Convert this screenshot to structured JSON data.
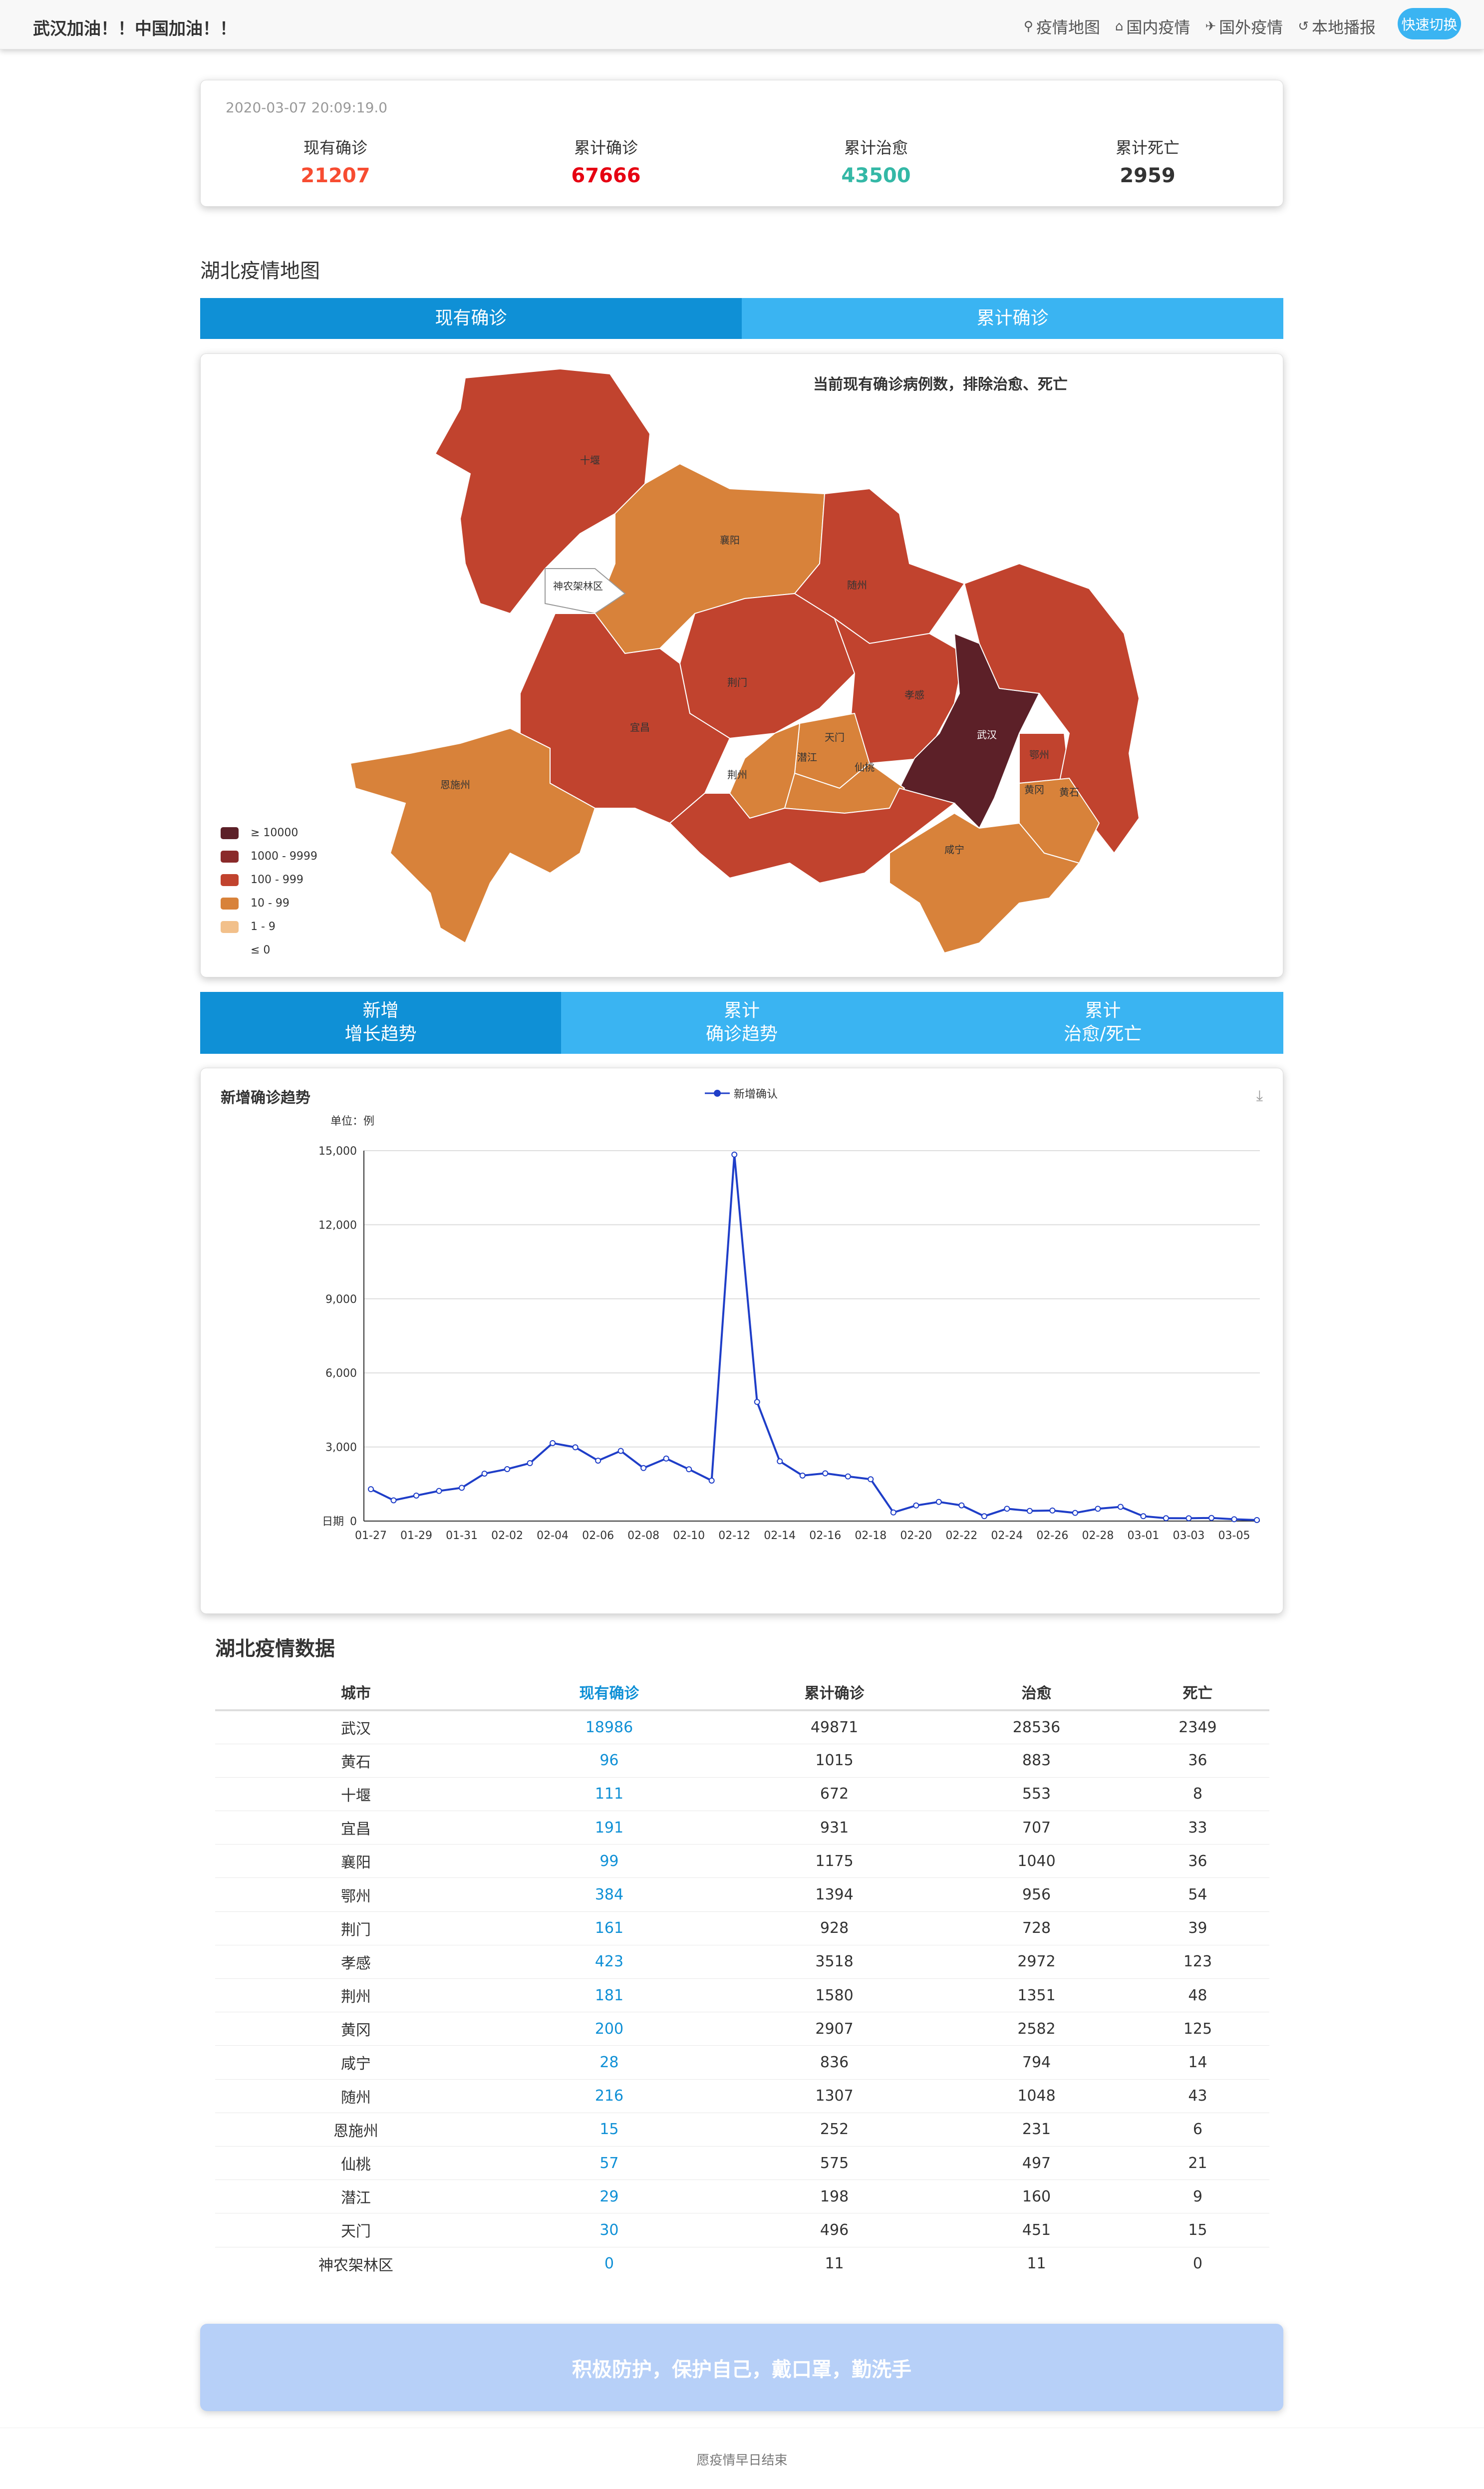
{
  "nav": {
    "brand": "武汉加油！！中国加油！！",
    "links": [
      {
        "icon": "map-marker-icon",
        "glyph": "⚲",
        "label": "疫情地图"
      },
      {
        "icon": "home-icon",
        "glyph": "⌂",
        "label": "国内疫情"
      },
      {
        "icon": "plane-icon",
        "glyph": "✈",
        "label": "国外疫情"
      },
      {
        "icon": "history-icon",
        "glyph": "↺",
        "label": "本地播报"
      }
    ],
    "quick": "快速切换"
  },
  "stats": {
    "time": "2020-03-07 20:09:19.0",
    "items": [
      {
        "label": "现有确诊",
        "value": "21207",
        "color": "#f74c31"
      },
      {
        "label": "累计确诊",
        "value": "67666",
        "color": "#e60012"
      },
      {
        "label": "累计治愈",
        "value": "43500",
        "color": "#34b8a6"
      },
      {
        "label": "累计死亡",
        "value": "2959",
        "color": "#333333"
      }
    ]
  },
  "mapSection": {
    "title": "湖北疫情地图",
    "tabs": [
      "现有确诊",
      "累计确诊"
    ],
    "mapTitle": "当前现有确诊病例数，排除治愈、死亡",
    "legend": [
      {
        "label": "≥ 10000",
        "color": "#5c2028"
      },
      {
        "label": "1000 - 9999",
        "color": "#8a2a2a"
      },
      {
        "label": "100 - 999",
        "color": "#c1432e"
      },
      {
        "label": "10 - 99",
        "color": "#d8823a"
      },
      {
        "label": "1 - 9",
        "color": "#f2c08a"
      },
      {
        "label": "≤ 0",
        "color": "#ffffff"
      }
    ],
    "regions": [
      {
        "name": "十堰",
        "color": "#c1432e"
      },
      {
        "name": "襄阳",
        "color": "#d8823a"
      },
      {
        "name": "随州",
        "color": "#c1432e"
      },
      {
        "name": "神农架林区",
        "color": "#ffffff"
      },
      {
        "name": "荆门",
        "color": "#c1432e"
      },
      {
        "name": "孝感",
        "color": "#c1432e"
      },
      {
        "name": "武汉",
        "color": "#5c2028"
      },
      {
        "name": "宜昌",
        "color": "#c1432e"
      },
      {
        "name": "天门",
        "color": "#d8823a"
      },
      {
        "name": "潜江",
        "color": "#d8823a"
      },
      {
        "name": "仙桃",
        "color": "#d8823a"
      },
      {
        "name": "荆州",
        "color": "#c1432e"
      },
      {
        "name": "恩施州",
        "color": "#d8823a"
      },
      {
        "name": "鄂州",
        "color": "#c1432e"
      },
      {
        "name": "黄冈",
        "color": "#c1432e"
      },
      {
        "name": "黄石",
        "color": "#d8823a"
      },
      {
        "name": "咸宁",
        "color": "#d8823a"
      }
    ]
  },
  "trendTabs": [
    [
      "新增",
      "增长趋势"
    ],
    [
      "累计",
      "确诊趋势"
    ],
    [
      "累计",
      "治愈/死亡"
    ]
  ],
  "chart_data": {
    "type": "line",
    "title": "新增确诊趋势",
    "unit": "单位：例",
    "legend": "新增确认",
    "xlabel": "日期",
    "ylim": [
      0,
      15000
    ],
    "yticks": [
      "0",
      "3,000",
      "6,000",
      "9,000",
      "12,000",
      "15,000"
    ],
    "xticks": [
      "01-27",
      "01-29",
      "01-31",
      "02-02",
      "02-04",
      "02-06",
      "02-08",
      "02-10",
      "02-12",
      "02-14",
      "02-16",
      "02-18",
      "02-20",
      "02-22",
      "02-24",
      "02-26",
      "02-28",
      "03-01",
      "03-03",
      "03-05"
    ],
    "series": [
      {
        "name": "新增确认",
        "values": [
          1291,
          840,
          1032,
          1220,
          1347,
          1921,
          2103,
          2345,
          3156,
          2987,
          2447,
          2841,
          2147,
          2531,
          2097,
          1638,
          14840,
          4823,
          2420,
          1843,
          1933,
          1807,
          1693,
          349,
          631,
          775,
          635,
          196,
          499,
          411,
          427,
          330,
          498,
          576,
          196,
          115,
          114,
          126,
          74,
          41
        ]
      }
    ]
  },
  "table": {
    "title": "湖北疫情数据",
    "headers": [
      "城市",
      "现有确诊",
      "累计确诊",
      "治愈",
      "死亡"
    ],
    "rows": [
      [
        "武汉",
        "18986",
        "49871",
        "28536",
        "2349"
      ],
      [
        "黄石",
        "96",
        "1015",
        "883",
        "36"
      ],
      [
        "十堰",
        "111",
        "672",
        "553",
        "8"
      ],
      [
        "宜昌",
        "191",
        "931",
        "707",
        "33"
      ],
      [
        "襄阳",
        "99",
        "1175",
        "1040",
        "36"
      ],
      [
        "鄂州",
        "384",
        "1394",
        "956",
        "54"
      ],
      [
        "荆门",
        "161",
        "928",
        "728",
        "39"
      ],
      [
        "孝感",
        "423",
        "3518",
        "2972",
        "123"
      ],
      [
        "荆州",
        "181",
        "1580",
        "1351",
        "48"
      ],
      [
        "黄冈",
        "200",
        "2907",
        "2582",
        "125"
      ],
      [
        "咸宁",
        "28",
        "836",
        "794",
        "14"
      ],
      [
        "随州",
        "216",
        "1307",
        "1048",
        "43"
      ],
      [
        "恩施州",
        "15",
        "252",
        "231",
        "6"
      ],
      [
        "仙桃",
        "57",
        "575",
        "497",
        "21"
      ],
      [
        "潜江",
        "29",
        "198",
        "160",
        "9"
      ],
      [
        "天门",
        "30",
        "496",
        "451",
        "15"
      ],
      [
        "神农架林区",
        "0",
        "11",
        "11",
        "0"
      ]
    ]
  },
  "banner": "积极防护，保护自己，戴口罩，勤洗手",
  "footer": "愿疫情早日结束"
}
